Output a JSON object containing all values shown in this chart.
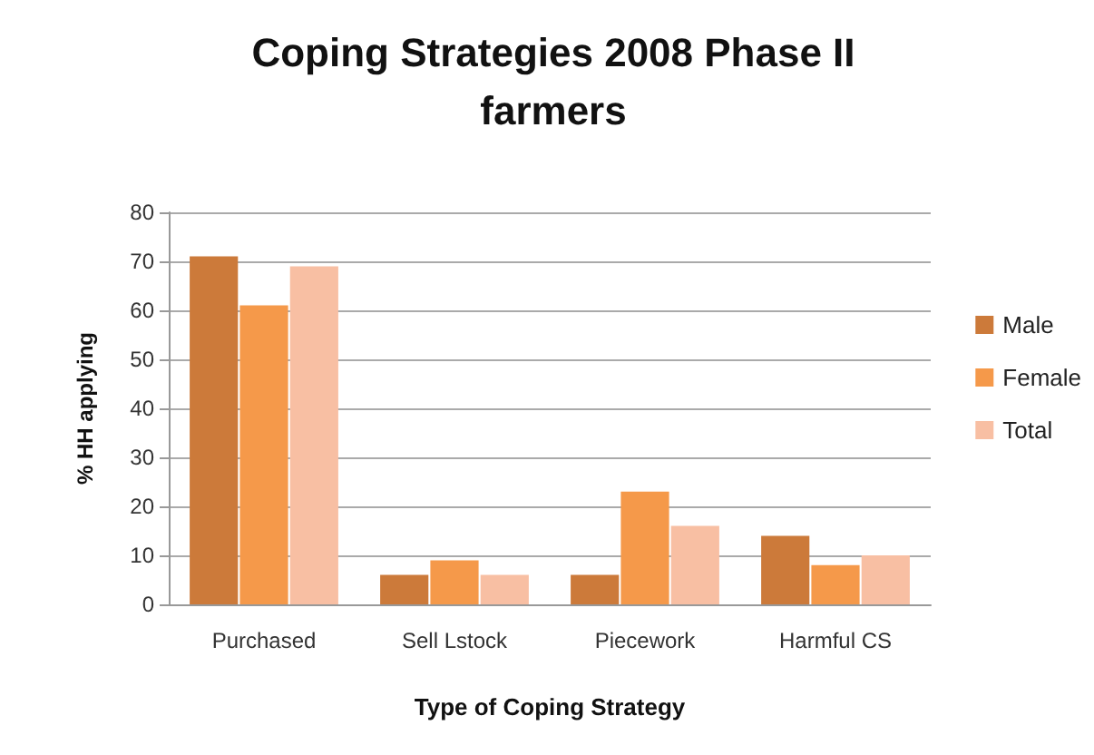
{
  "chart_data": {
    "type": "bar",
    "title": "Coping Strategies 2008 Phase II\nfarmers",
    "xlabel": "Type of Coping Strategy",
    "ylabel": "% HH applying",
    "categories": [
      "Purchased",
      "Sell Lstock",
      "Piecework",
      "Harmful CS"
    ],
    "series": [
      {
        "name": "Male",
        "color": "#cc7a3a",
        "values": [
          71,
          6,
          6,
          14
        ]
      },
      {
        "name": "Female",
        "color": "#f5994a",
        "values": [
          61,
          9,
          23,
          8
        ]
      },
      {
        "name": "Total",
        "color": "#f8bfa3",
        "values": [
          69,
          6,
          16,
          10
        ]
      }
    ],
    "ylim": [
      0,
      80
    ],
    "yticks": [
      0,
      10,
      20,
      30,
      40,
      50,
      60,
      70,
      80
    ],
    "grid": "y",
    "legend": "right"
  }
}
